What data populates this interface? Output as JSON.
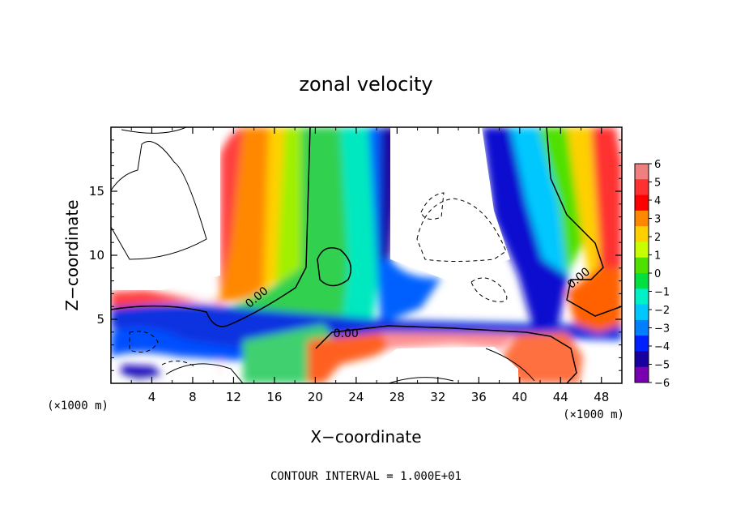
{
  "chart_data": {
    "type": "heatmap",
    "title": "zonal velocity",
    "xlabel": "X−coordinate",
    "ylabel": "Z−coordinate",
    "x_scale_note_left": "(×1000 m)",
    "x_scale_note_right": "(×1000 m)",
    "xlim": [
      0,
      50
    ],
    "ylim": [
      0,
      20
    ],
    "x_ticks": [
      4,
      8,
      12,
      16,
      20,
      24,
      28,
      32,
      36,
      40,
      44,
      48
    ],
    "y_ticks": [
      5,
      10,
      15
    ],
    "colorbar": {
      "ticks": [
        6,
        5,
        4,
        3,
        2,
        1,
        0,
        -1,
        -2,
        -3,
        -4,
        -5,
        -6
      ],
      "tick_labels": [
        "6",
        "5",
        "4",
        "3",
        "2",
        "1",
        "0",
        "−1",
        "−2",
        "−3",
        "−4",
        "−5",
        "−6"
      ],
      "colors_top_to_bottom": [
        "#f08080",
        "#ff3030",
        "#ff0000",
        "#ff8800",
        "#ffd000",
        "#c8ff00",
        "#50e000",
        "#00e040",
        "#00f0c8",
        "#00c8ff",
        "#0080ff",
        "#0020ff",
        "#1800a0",
        "#7800b0"
      ]
    },
    "contour_labels": [
      {
        "text": "0.00",
        "x": 14.5,
        "z": 6.5
      },
      {
        "text": "0.00",
        "x": 23.0,
        "z": 3.6
      },
      {
        "text": "0.00",
        "x": 46.0,
        "z": 8.0
      }
    ],
    "contour_interval_text": "CONTOUR INTERVAL = 1.000E+01",
    "grid": false
  }
}
